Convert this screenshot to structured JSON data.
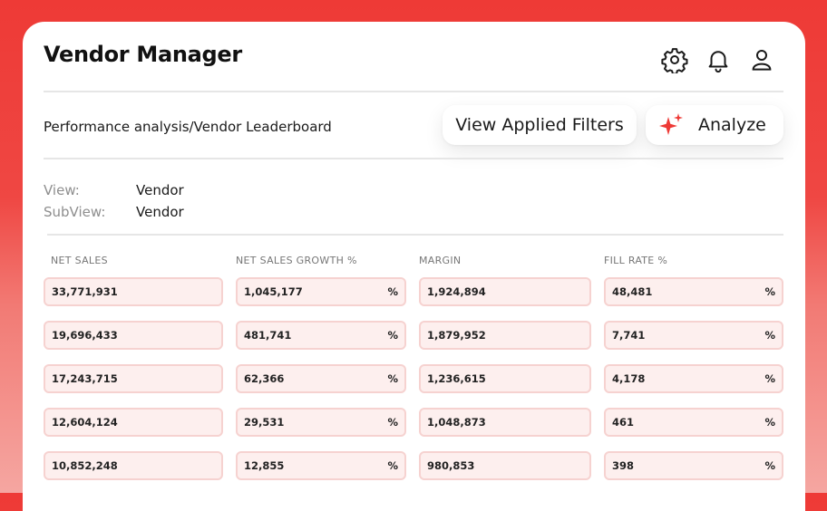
{
  "app": {
    "title": "Vendor Manager"
  },
  "header_icons": [
    "gear-icon",
    "bell-icon",
    "user-icon"
  ],
  "breadcrumb": "Performance analysis/Vendor Leaderboard",
  "actions": {
    "view_filters": "View Applied Filters",
    "analyze": "Analyze"
  },
  "meta": {
    "view_label": "View:",
    "view_value": "Vendor",
    "subview_label": "SubView:",
    "subview_value": "Vendor"
  },
  "columns": [
    "NET SALES",
    "NET SALES GROWTH %",
    "MARGIN",
    "FILL RATE %"
  ],
  "percent_symbol": "%",
  "rows": [
    [
      "33,771,931",
      "1,045,177",
      "1,924,894",
      "48,481"
    ],
    [
      "19,696,433",
      "481,741",
      "1,879,952",
      "7,741"
    ],
    [
      "17,243,715",
      "62,366",
      "1,236,615",
      "4,178"
    ],
    [
      "12,604,124",
      "29,531",
      "1,048,873",
      "461"
    ],
    [
      "10,852,248",
      "12,855",
      "980,853",
      "398"
    ]
  ],
  "colors": {
    "accent": "#ee3a36",
    "cell_bg": "#fdefee",
    "cell_border": "#f6d2d0"
  }
}
